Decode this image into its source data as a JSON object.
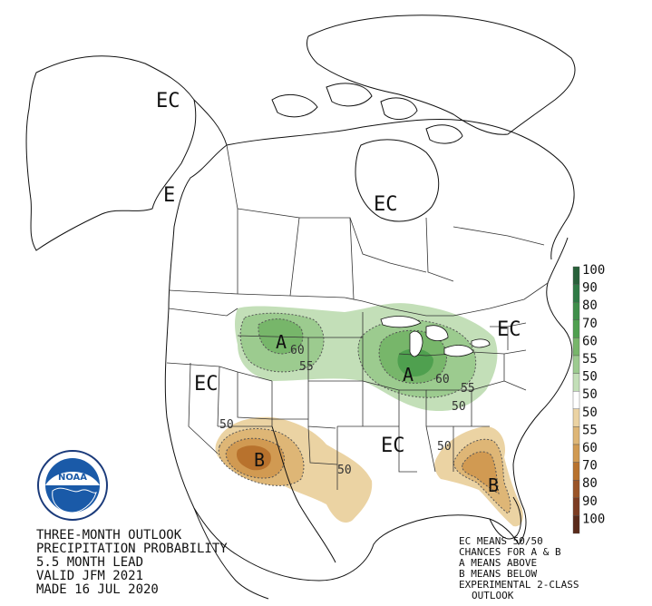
{
  "map_labels": {
    "ec_alaska": "EC",
    "ec_bc_coast": "E",
    "ec_canada_east": "EC",
    "ec_great_basin": "EC",
    "ec_south": "EC",
    "ec_new_england": "EC",
    "a_north_plains": "A",
    "a_great_lakes": "A",
    "b_southwest": "B",
    "b_florida": "B"
  },
  "contour_labels": {
    "c60_plains": "60",
    "c55_plains": "55",
    "c60_lakes": "60",
    "c55_ohio": "55",
    "c50_ohio": "50",
    "c50_colorado": "50",
    "c50_texas": "50",
    "c50_southeast": "50"
  },
  "legend": {
    "above": {
      "color": "#2f7a45",
      "levels": [
        {
          "value": "100",
          "color": "#28613a"
        },
        {
          "value": "90",
          "color": "#2f7a45"
        },
        {
          "value": "80",
          "color": "#3f8f4a"
        },
        {
          "value": "70",
          "color": "#4fa04f"
        },
        {
          "value": "60",
          "color": "#77b66a"
        },
        {
          "value": "55",
          "color": "#9ccb8f"
        },
        {
          "value": "50",
          "color": "#c3dfb8"
        }
      ]
    },
    "neutral": {
      "value": "50",
      "color": "#ffffff"
    },
    "below": {
      "color": "#b8722d",
      "levels": [
        {
          "value": "50",
          "color": "#ebd3a3"
        },
        {
          "value": "55",
          "color": "#deb676"
        },
        {
          "value": "60",
          "color": "#d19a52"
        },
        {
          "value": "70",
          "color": "#b8722d"
        },
        {
          "value": "80",
          "color": "#9a5427"
        },
        {
          "value": "90",
          "color": "#7c3c22"
        },
        {
          "value": "100",
          "color": "#5a2a1a"
        }
      ]
    }
  },
  "title_block": {
    "line1": "THREE-MONTH OUTLOOK",
    "line2": "PRECIPITATION PROBABILITY",
    "line3": "5.5 MONTH LEAD",
    "line4": "VALID JFM 2021",
    "line5": "MADE 16 JUL 2020"
  },
  "notes": {
    "line1": "EC MEANS 50/50",
    "line2": "CHANCES FOR A & B",
    "line3": "A MEANS ABOVE",
    "line4": "B MEANS BELOW",
    "line5": "EXPERIMENTAL 2-CLASS",
    "line6": "OUTLOOK"
  },
  "logo": {
    "name": "noaa-logo",
    "text": "NOAA",
    "ring_text": "NATIONAL OCEANIC AND ATMOSPHERIC ADMINISTRATION · U.S. DEPARTMENT OF COMMERCE"
  },
  "colors": {
    "above_light": "#c3dfb8",
    "above_mid": "#9ccb8f",
    "above_dark": "#3f8f4a",
    "below_light": "#ebd3a3",
    "below_mid": "#d19a52",
    "below_dark": "#b8722d",
    "below_darkest": "#9a5427"
  }
}
